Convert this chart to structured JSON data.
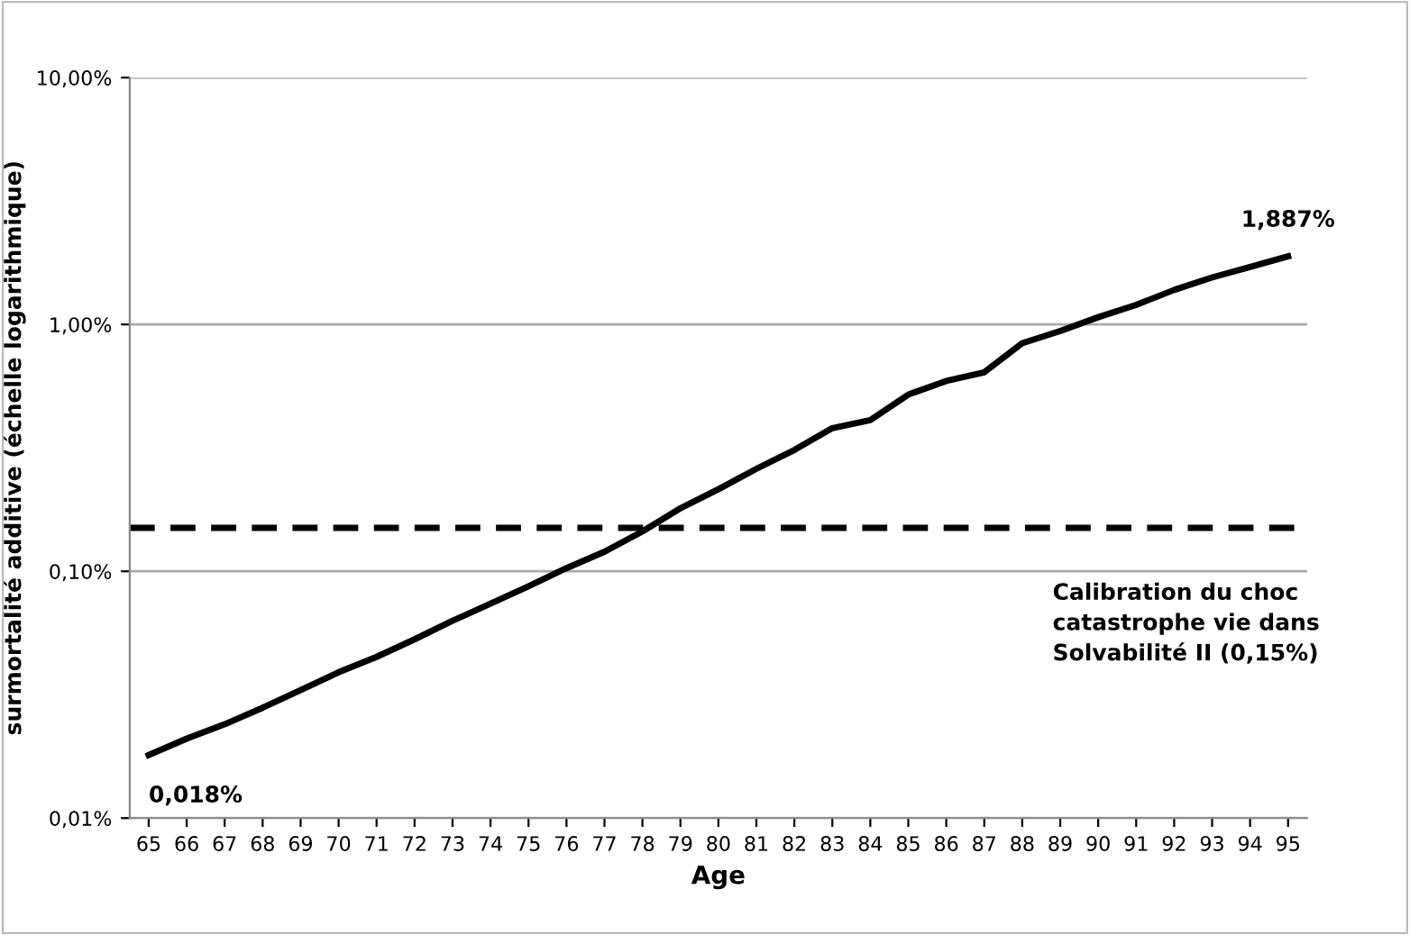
{
  "chart_data": {
    "type": "line",
    "xlabel": "Age",
    "ylabel": "surmortalité additive (échelle logarithmique)",
    "categories": [
      "65",
      "66",
      "67",
      "68",
      "69",
      "70",
      "71",
      "72",
      "73",
      "74",
      "75",
      "76",
      "77",
      "78",
      "79",
      "80",
      "81",
      "82",
      "83",
      "84",
      "85",
      "86",
      "87",
      "88",
      "89",
      "90",
      "91",
      "92",
      "93",
      "94",
      "95"
    ],
    "series": [
      {
        "color": "#000000",
        "values": [
          0.018,
          0.021,
          0.024,
          0.028,
          0.033,
          0.039,
          0.045,
          0.053,
          0.063,
          0.074,
          0.087,
          0.103,
          0.12,
          0.145,
          0.18,
          0.215,
          0.26,
          0.31,
          0.38,
          0.41,
          0.52,
          0.59,
          0.64,
          0.84,
          0.94,
          1.07,
          1.2,
          1.38,
          1.55,
          1.71,
          1.887
        ],
        "value_labels": [
          "0,018%",
          null,
          null,
          null,
          null,
          null,
          null,
          null,
          null,
          null,
          null,
          null,
          null,
          null,
          null,
          null,
          null,
          null,
          null,
          null,
          null,
          null,
          null,
          null,
          null,
          null,
          null,
          null,
          null,
          null,
          "1,887%"
        ]
      }
    ],
    "log": "y",
    "ylim": [
      0.01,
      10
    ],
    "yticks": [
      {
        "value": 0.01,
        "label": "0,01%"
      },
      {
        "value": 0.1,
        "label": "0,10%"
      },
      {
        "value": 1,
        "label": "1,00%"
      },
      {
        "value": 10,
        "label": "10,00%"
      }
    ],
    "grid": "y",
    "marker": "none",
    "line_style": "solid",
    "legend": false,
    "ref_lines": [
      {
        "axis": "y",
        "value": 0.15,
        "label": "Calibration du choc\ncatastrophe vie dans\nSolvabilité II (0,15%)",
        "color": "#000000",
        "line_style": "dashed"
      }
    ]
  }
}
